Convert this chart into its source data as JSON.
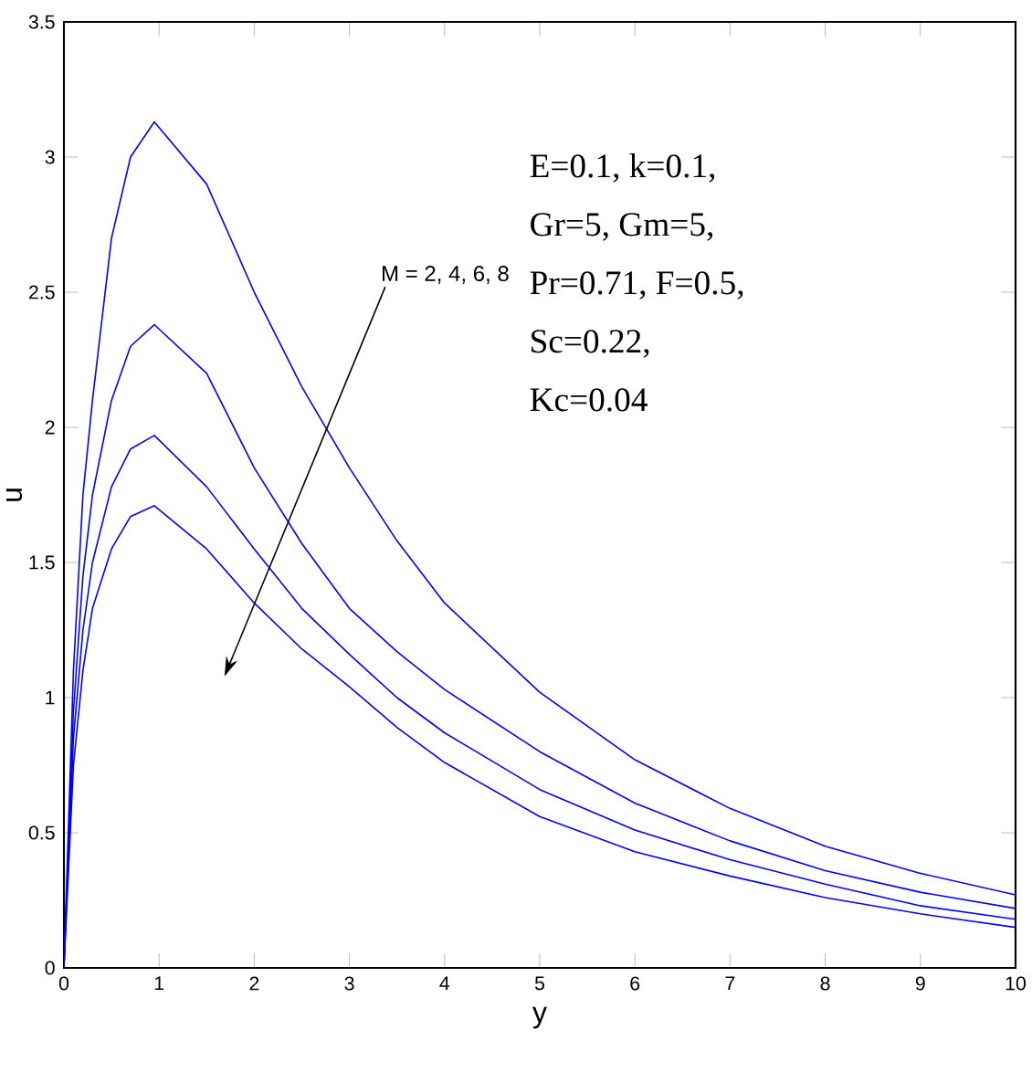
{
  "chart_data": {
    "type": "line",
    "xlabel": "y",
    "ylabel": "u",
    "xlim": [
      0,
      10
    ],
    "ylim": [
      0,
      3.5
    ],
    "xticks": [
      0,
      1,
      2,
      3,
      4,
      5,
      6,
      7,
      8,
      9,
      10
    ],
    "yticks": [
      0,
      0.5,
      1,
      1.5,
      2,
      2.5,
      3,
      3.5
    ],
    "grid": false,
    "marker": "none",
    "line_style": "solid",
    "x": [
      0,
      0.1,
      0.2,
      0.3,
      0.5,
      0.7,
      0.95,
      1.5,
      2,
      2.5,
      3,
      3.5,
      4,
      5,
      6,
      7,
      8,
      9,
      10
    ],
    "series": [
      {
        "color": "#0000ff",
        "values": [
          0,
          1.1,
          1.75,
          2.1,
          2.7,
          3.0,
          3.13,
          2.9,
          2.5,
          2.15,
          1.85,
          1.58,
          1.35,
          1.02,
          0.77,
          0.59,
          0.45,
          0.35,
          0.27
        ]
      },
      {
        "color": "#0000ff",
        "values": [
          0,
          0.95,
          1.45,
          1.75,
          2.1,
          2.3,
          2.38,
          2.2,
          1.85,
          1.57,
          1.33,
          1.17,
          1.03,
          0.8,
          0.61,
          0.47,
          0.36,
          0.28,
          0.22
        ]
      },
      {
        "color": "#0000ff",
        "values": [
          0,
          0.85,
          1.25,
          1.5,
          1.78,
          1.92,
          1.97,
          1.78,
          1.55,
          1.33,
          1.16,
          1.0,
          0.87,
          0.66,
          0.51,
          0.4,
          0.31,
          0.23,
          0.18
        ]
      },
      {
        "color": "#0000ff",
        "values": [
          0,
          0.75,
          1.1,
          1.33,
          1.55,
          1.67,
          1.71,
          1.55,
          1.35,
          1.18,
          1.04,
          0.89,
          0.76,
          0.56,
          0.43,
          0.34,
          0.26,
          0.2,
          0.15
        ]
      }
    ],
    "annotations": [
      "M = 2, 4, 6, 8",
      "E=0.1,    k=0.1,",
      "Gr=5,     Gm=5,",
      "Pr=0.71, F=0.5,",
      "Sc=0.22,",
      "Kc=0.04"
    ]
  }
}
